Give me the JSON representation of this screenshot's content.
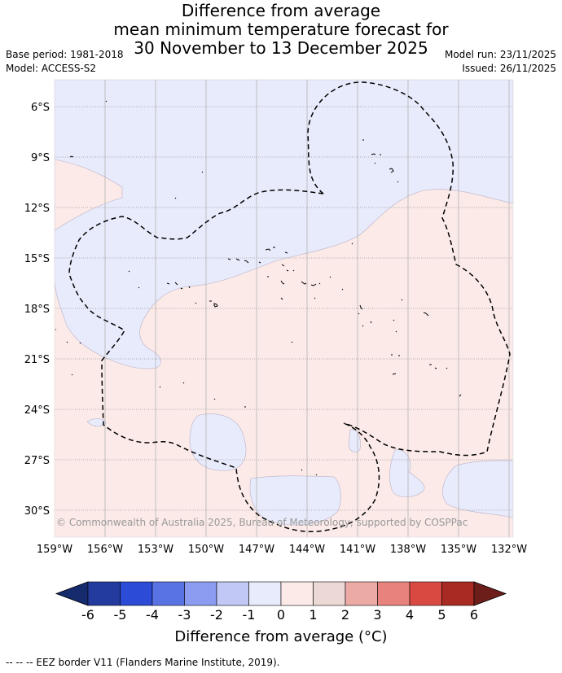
{
  "title": {
    "line1": "Difference from average",
    "line2": "mean minimum temperature forecast for",
    "line3": "30 November to 13 December 2025"
  },
  "meta": {
    "base_period": "Base period: 1981-2018",
    "model": "Model: ACCESS-S2",
    "model_run": "Model run: 23/11/2025",
    "issued": "Issued: 26/11/2025"
  },
  "map": {
    "lat_labels": [
      "6°S",
      "9°S",
      "12°S",
      "15°S",
      "18°S",
      "21°S",
      "24°S",
      "27°S",
      "30°S"
    ],
    "lon_labels": [
      "159°W",
      "156°W",
      "153°W",
      "150°W",
      "147°W",
      "144°W",
      "141°W",
      "138°W",
      "135°W",
      "132°W"
    ],
    "copyright": "© Commonwealth of Australia 2025, Bureau of Meteorology, supported by COSPPac"
  },
  "colorbar": {
    "colors": [
      "#233b9e",
      "#2c4bd6",
      "#5a73e4",
      "#8c9cf0",
      "#c1c8f6",
      "#e8ebfb",
      "#fbeae8",
      "#ecd8d5",
      "#ecaaa5",
      "#e7837c",
      "#d94941",
      "#a82a22"
    ],
    "under_color": "#162b6e",
    "over_color": "#6e1e1a",
    "tick_labels": [
      "-6",
      "-5",
      "-4",
      "-3",
      "-2",
      "-1",
      "0",
      "1",
      "2",
      "3",
      "4",
      "5",
      "6"
    ],
    "title": "Difference from average (°C)"
  },
  "footnote": "--  --  -- EEZ border V11 (Flanders Marine Institute, 2019)."
}
